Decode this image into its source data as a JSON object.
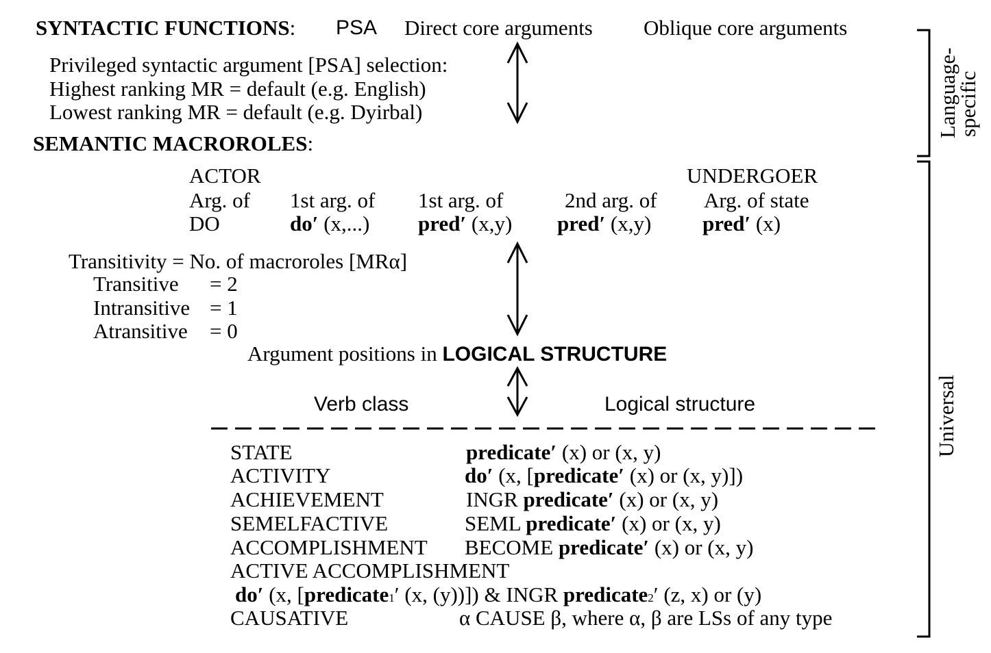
{
  "header": {
    "syntactic_functions": "SYNTACTIC FUNCTIONS",
    "colon": ":",
    "psa": "PSA",
    "direct_core": "Direct core arguments",
    "oblique_core": "Oblique core arguments"
  },
  "psa_selection": {
    "line1": "Privileged syntactic argument [PSA] selection:",
    "line2": "Highest ranking MR = default (e.g. English)",
    "line3": "Lowest ranking MR =  default (e.g. Dyirbal)"
  },
  "macroroles": {
    "heading": "SEMANTIC MACROROLES",
    "colon": ":",
    "actor": "ACTOR",
    "undergoer": "UNDERGOER",
    "col1_line1": "Arg. of",
    "col1_line2": "DO",
    "col2_line1": "1st arg. of",
    "col2_pred": "do′",
    "col2_args": " (x,...)",
    "col3_line1": "1st arg. of",
    "col3_pred": "pred′",
    "col3_args": " (x,y)",
    "col4_line1": "2nd arg. of",
    "col4_pred": "pred′",
    "col4_args": " (x,y)",
    "col5_line1": "Arg. of state",
    "col5_pred": "pred′",
    "col5_args": " (x)"
  },
  "transitivity": {
    "heading": "Transitivity = No. of macroroles [MRα]",
    "rows": [
      {
        "label": "Transitive",
        "value": "= 2"
      },
      {
        "label": "Intransitive",
        "value": "= 1"
      },
      {
        "label": "Atransitive",
        "value": "= 0"
      }
    ]
  },
  "logical_structure": {
    "prefix": "Argument positions in ",
    "bold": "LOGICAL STRUCTURE",
    "verb_class_header": "Verb class",
    "ls_header": "Logical structure"
  },
  "verb_classes": {
    "state": {
      "name": "STATE",
      "ls_bold": "predicate′",
      "ls_rest": " (x) or (x, y)"
    },
    "activity": {
      "name": "ACTIVITY",
      "ls_bold1": "do′",
      "ls_mid": " (x, [",
      "ls_bold2": "predicate′",
      "ls_rest": " (x) or (x, y)])"
    },
    "achievement": {
      "name": "ACHIEVEMENT",
      "ls_pre": "INGR ",
      "ls_bold": "predicate′",
      "ls_rest": " (x) or (x, y)"
    },
    "semelfactive": {
      "name": "SEMELFACTIVE",
      "ls_pre": "SEML ",
      "ls_bold": "predicate′",
      "ls_rest": " (x) or (x, y)"
    },
    "accomplishment": {
      "name": "ACCOMPLISHMENT",
      "ls_pre": "BECOME ",
      "ls_bold": "predicate′",
      "ls_rest": " (x) or (x, y)"
    },
    "active_accomplishment": {
      "name": "ACTIVE ACCOMPLISHMENT",
      "b1": "do′",
      "t1": " (x, [",
      "b2": "predicate",
      "s1": "1",
      "t2": "′ (x, (y))]) & INGR ",
      "b3": "predicate",
      "s2": "2",
      "t3": "′ (z, x) or (y)"
    },
    "causative": {
      "name": "CAUSATIVE",
      "ls": "α CAUSE β, where α, β are LSs of any type"
    }
  },
  "side_labels": {
    "language_specific_1": "Language-",
    "language_specific_2": "specific",
    "universal": "Universal"
  }
}
